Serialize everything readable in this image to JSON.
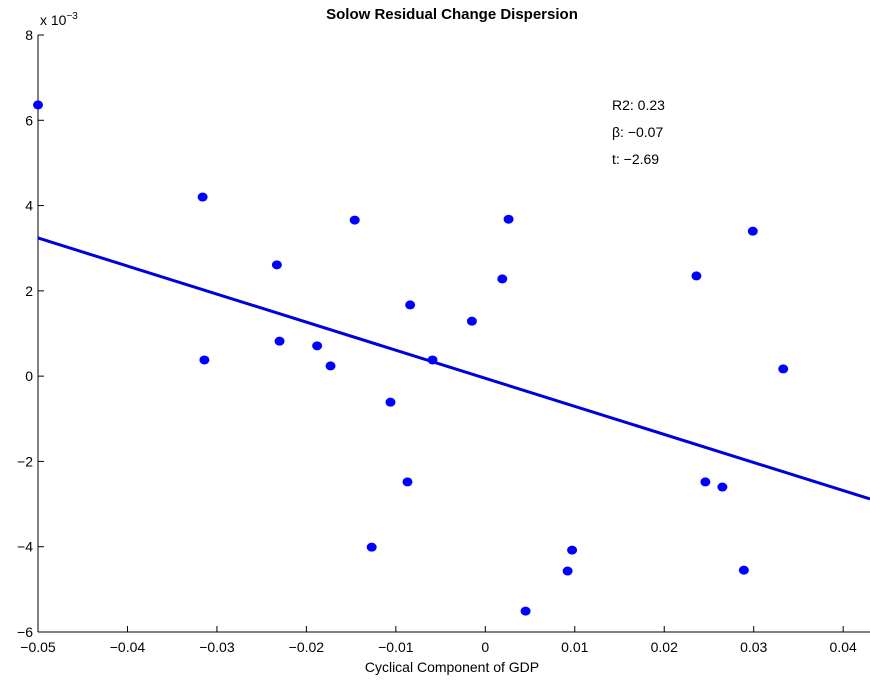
{
  "chart_data": {
    "type": "scatter",
    "title": "Solow Residual Change Dispersion",
    "x_label": "Cyclical Component of GDP",
    "y_multiplier": "x 10",
    "y_exponent": "−3",
    "annotations": [
      "R2: 0.23",
      "β: −0.07",
      "t: −2.69"
    ],
    "series": [
      {
        "color": "#0000ff",
        "x": [
          -0.05,
          -0.0316,
          -0.0314,
          -0.0233,
          -0.023,
          -0.0188,
          -0.0173,
          -0.0146,
          -0.0127,
          -0.0106,
          -0.0087,
          -0.0084,
          -0.0059,
          -0.0015,
          0.0019,
          0.0026,
          0.0045,
          0.0092,
          0.0097,
          0.0236,
          0.0246,
          0.0265,
          0.0289,
          0.0299,
          0.0333
        ],
        "values": [
          0.00636,
          0.0042,
          0.00038,
          0.00261,
          0.00082,
          0.00071,
          0.00024,
          0.00366,
          -0.00401,
          -0.00061,
          -0.00248,
          0.00167,
          0.00038,
          0.00129,
          0.00228,
          0.00368,
          -0.00551,
          -0.00457,
          -0.00408,
          0.00235,
          -0.00248,
          -0.0026,
          -0.00455,
          0.0034,
          0.00017
        ]
      }
    ],
    "fit": {
      "color": "#0000dd",
      "x": [
        -0.05,
        0.043
      ],
      "values": [
        0.00324,
        -0.00288
      ]
    },
    "xlim": [
      -0.05,
      0.043
    ],
    "ylim": [
      -0.006,
      0.008
    ],
    "xticks": [
      {
        "value": -0.05,
        "label": "−0.05"
      },
      {
        "value": -0.04,
        "label": "−0.04"
      },
      {
        "value": -0.03,
        "label": "−0.03"
      },
      {
        "value": -0.02,
        "label": "−0.02"
      },
      {
        "value": -0.01,
        "label": "−0.01"
      },
      0,
      0.01,
      0.02,
      0.03,
      0.04
    ],
    "yticks": [
      {
        "value": -0.006,
        "label": "−6"
      },
      {
        "value": -0.004,
        "label": "−4"
      },
      {
        "value": -0.002,
        "label": "−2"
      },
      0,
      {
        "value": 0.002,
        "label": "2"
      },
      {
        "value": 0.004,
        "label": "4"
      },
      {
        "value": 0.006,
        "label": "6"
      },
      {
        "value": 0.008,
        "label": "8"
      }
    ]
  }
}
